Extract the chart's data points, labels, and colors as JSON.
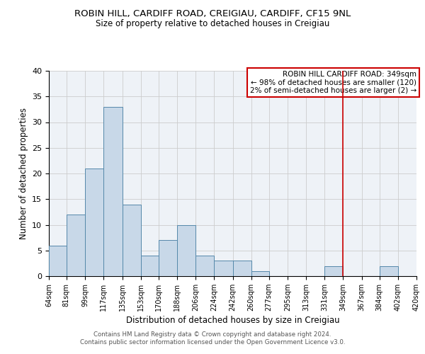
{
  "title": "ROBIN HILL, CARDIFF ROAD, CREIGIAU, CARDIFF, CF15 9NL",
  "subtitle": "Size of property relative to detached houses in Creigiau",
  "xlabel": "Distribution of detached houses by size in Creigiau",
  "ylabel": "Number of detached properties",
  "bin_edges": [
    64,
    81,
    99,
    117,
    135,
    153,
    170,
    188,
    206,
    224,
    242,
    260,
    277,
    295,
    313,
    331,
    349,
    367,
    384,
    402,
    420
  ],
  "bar_heights": [
    6,
    12,
    21,
    33,
    14,
    4,
    7,
    10,
    4,
    3,
    3,
    1,
    0,
    0,
    0,
    2,
    0,
    0,
    2,
    0
  ],
  "bar_color": "#c8d8e8",
  "bar_edge_color": "#5588aa",
  "grid_color": "#cccccc",
  "vline_x": 349,
  "vline_color": "#cc0000",
  "annotation_text": "ROBIN HILL CARDIFF ROAD: 349sqm\n← 98% of detached houses are smaller (120)\n2% of semi-detached houses are larger (2) →",
  "annotation_box_color": "#cc0000",
  "ylim": [
    0,
    40
  ],
  "yticks": [
    0,
    5,
    10,
    15,
    20,
    25,
    30,
    35,
    40
  ],
  "tick_labels": [
    "64sqm",
    "81sqm",
    "99sqm",
    "117sqm",
    "135sqm",
    "153sqm",
    "170sqm",
    "188sqm",
    "206sqm",
    "224sqm",
    "242sqm",
    "260sqm",
    "277sqm",
    "295sqm",
    "313sqm",
    "331sqm",
    "349sqm",
    "367sqm",
    "384sqm",
    "402sqm",
    "420sqm"
  ],
  "footer_text": "Contains HM Land Registry data © Crown copyright and database right 2024.\nContains public sector information licensed under the Open Government Licence v3.0.",
  "background_color": "#eef2f7"
}
